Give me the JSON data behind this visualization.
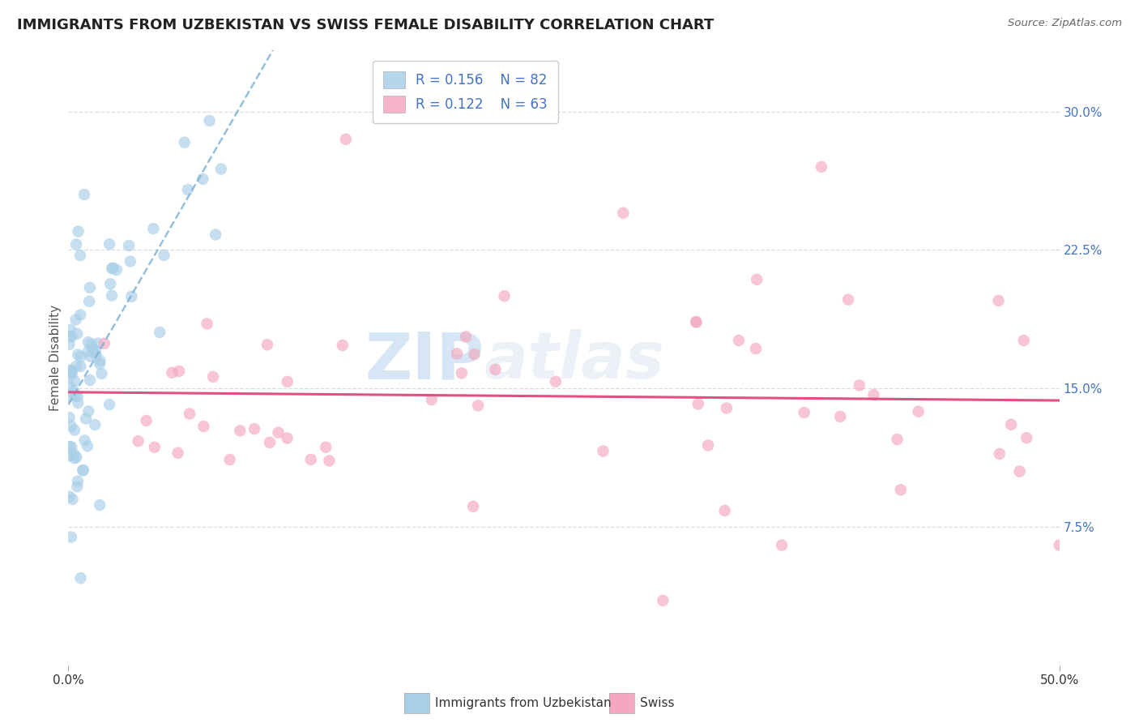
{
  "title": "IMMIGRANTS FROM UZBEKISTAN VS SWISS FEMALE DISABILITY CORRELATION CHART",
  "source": "Source: ZipAtlas.com",
  "ylabel": "Female Disability",
  "xlim": [
    0.0,
    0.5
  ],
  "ylim": [
    0.0,
    0.333
  ],
  "xticks": [
    0.0,
    0.5
  ],
  "xtick_labels": [
    "0.0%",
    "50.0%"
  ],
  "yticks": [
    0.075,
    0.15,
    0.225,
    0.3
  ],
  "ytick_labels": [
    "7.5%",
    "15.0%",
    "22.5%",
    "30.0%"
  ],
  "grid_yticks": [
    0.075,
    0.15,
    0.225,
    0.3
  ],
  "legend_r1": "R = 0.156",
  "legend_n1": "N = 82",
  "legend_r2": "R = 0.122",
  "legend_n2": "N = 63",
  "blue_color": "#a8cfe8",
  "pink_color": "#f4a7bf",
  "blue_line_color": "#7ab0d4",
  "pink_line_color": "#e05080",
  "title_fontsize": 13,
  "axis_label_fontsize": 11,
  "tick_fontsize": 11,
  "tick_color": "#4472c4",
  "watermark_text": "ZIPatlas",
  "bottom_legend": [
    "Immigrants from Uzbekistan",
    "Swiss"
  ]
}
